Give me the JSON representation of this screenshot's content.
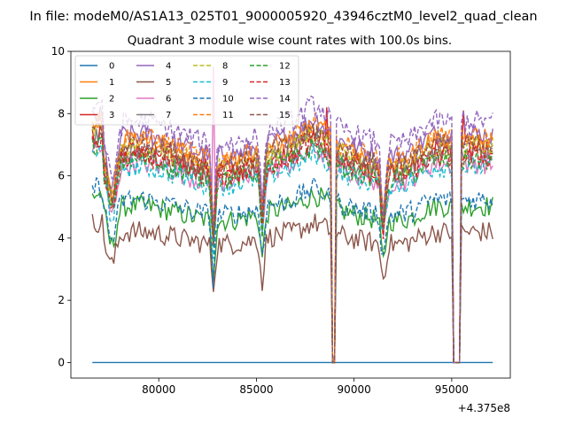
{
  "chart_data": {
    "type": "line",
    "suptitle": "In file: modeM0/AS1A13_025T01_9000005920_43946cztM0_level2_quad_clean",
    "title": "Quadrant 3 module wise count rates with 100.0s bins.",
    "xlabel": "",
    "ylabel": "",
    "x_offset_label": "+4.375e8",
    "xlim": [
      75500,
      98000
    ],
    "ylim": [
      -0.5,
      10
    ],
    "xticks": [
      80000,
      85000,
      90000,
      95000
    ],
    "xtick_labels": [
      "80000",
      "85000",
      "90000",
      "95000"
    ],
    "yticks": [
      0,
      2,
      4,
      6,
      8,
      10
    ],
    "ytick_labels": [
      "0",
      "2",
      "4",
      "6",
      "8",
      "10"
    ],
    "x_start": 76600,
    "x_end": 97100,
    "bin_width": 100,
    "gaps": [
      [
        88800,
        89100
      ],
      [
        95000,
        95500
      ]
    ],
    "legend_location": "upper-left",
    "series": [
      {
        "name": "0",
        "color": "#1f77b4",
        "dash": "solid",
        "baseline": 0.0
      },
      {
        "name": "1",
        "color": "#ff7f0e",
        "dash": "solid",
        "baseline": 6.8
      },
      {
        "name": "2",
        "color": "#2ca02c",
        "dash": "solid",
        "baseline": 4.8
      },
      {
        "name": "3",
        "color": "#d62728",
        "dash": "solid",
        "baseline": 6.5
      },
      {
        "name": "4",
        "color": "#9467bd",
        "dash": "solid",
        "baseline": 7.0
      },
      {
        "name": "5",
        "color": "#8c564b",
        "dash": "solid",
        "baseline": 4.0
      },
      {
        "name": "6",
        "color": "#e377c2",
        "dash": "solid",
        "baseline": 6.1
      },
      {
        "name": "7",
        "color": "#7f7f7f",
        "dash": "solid",
        "baseline": 6.4
      },
      {
        "name": "8",
        "color": "#bcbd22",
        "dash": "dashed",
        "baseline": 6.6
      },
      {
        "name": "9",
        "color": "#17becf",
        "dash": "dashed",
        "baseline": 6.0
      },
      {
        "name": "10",
        "color": "#1f77b4",
        "dash": "dashed",
        "baseline": 5.0
      },
      {
        "name": "11",
        "color": "#ff7f0e",
        "dash": "dashed",
        "baseline": 6.9
      },
      {
        "name": "12",
        "color": "#2ca02c",
        "dash": "dashed",
        "baseline": 6.2
      },
      {
        "name": "13",
        "color": "#d62728",
        "dash": "dashed",
        "baseline": 6.3
      },
      {
        "name": "14",
        "color": "#9467bd",
        "dash": "dashed",
        "baseline": 7.4
      },
      {
        "name": "15",
        "color": "#8c564b",
        "dash": "dashed",
        "baseline": 6.7
      }
    ]
  }
}
